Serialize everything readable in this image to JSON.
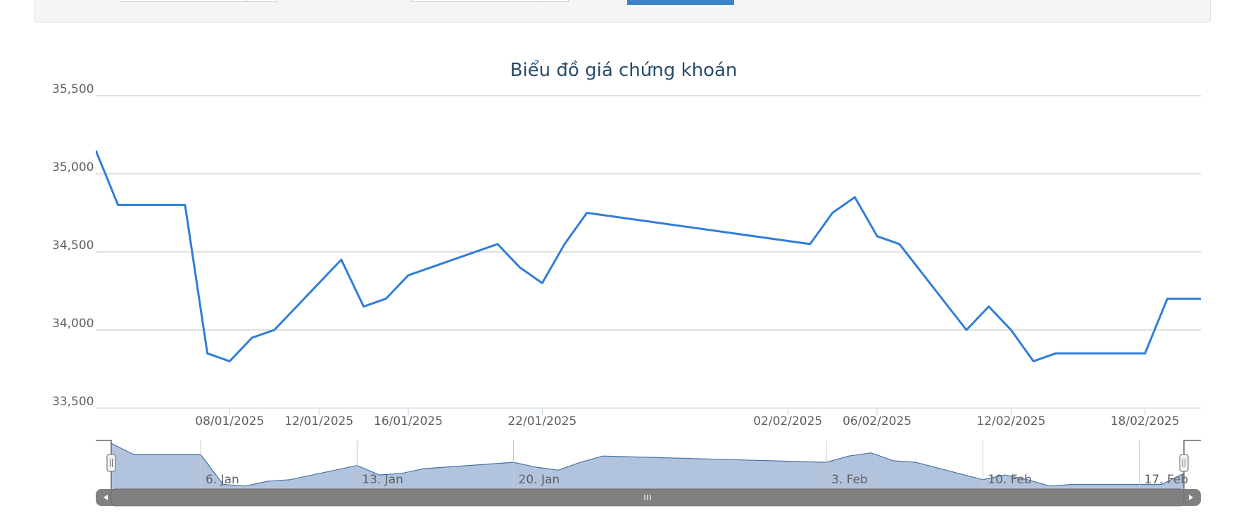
{
  "filters": {
    "submit_label": ""
  },
  "chart_data": {
    "type": "line",
    "title": "Biểu đồ giá chứng khoán",
    "xlabel": "",
    "ylabel": "",
    "ylim": [
      33500,
      35500
    ],
    "y_ticks": [
      "33,500",
      "34,000",
      "34,500",
      "35,000",
      "35,500"
    ],
    "x_tick_labels": [
      "08/01/2025",
      "12/01/2025",
      "16/01/2025",
      "22/01/2025",
      "02/02/2025",
      "06/02/2025",
      "12/02/2025",
      "18/02/2025"
    ],
    "series_color": "#2f7ed8",
    "grid": true,
    "legend": "none",
    "series": [
      {
        "x": [
          "02/01/2025",
          "03/01/2025",
          "06/01/2025",
          "07/01/2025",
          "08/01/2025",
          "09/01/2025",
          "10/01/2025",
          "13/01/2025",
          "14/01/2025",
          "15/01/2025",
          "16/01/2025",
          "17/01/2025",
          "20/01/2025",
          "21/01/2025",
          "22/01/2025",
          "23/01/2025",
          "24/01/2025",
          "03/02/2025",
          "04/02/2025",
          "05/02/2025",
          "06/02/2025",
          "07/02/2025",
          "10/02/2025",
          "11/02/2025",
          "12/02/2025",
          "13/02/2025",
          "14/02/2025",
          "17/02/2025",
          "18/02/2025",
          "19/02/2025",
          "20/02/2025"
        ],
        "values": [
          35150,
          34800,
          34800,
          33850,
          33800,
          33950,
          34000,
          34450,
          34150,
          34200,
          34350,
          34400,
          34550,
          34400,
          34300,
          34550,
          34750,
          34550,
          34750,
          34850,
          34600,
          34550,
          34000,
          34150,
          34000,
          33800,
          33850,
          33850,
          33850,
          34200,
          34200
        ]
      }
    ],
    "navigator": {
      "tick_labels": [
        "6. Jan",
        "13. Jan",
        "20. Jan",
        "3. Feb",
        "10. Feb",
        "17. Feb"
      ]
    }
  }
}
